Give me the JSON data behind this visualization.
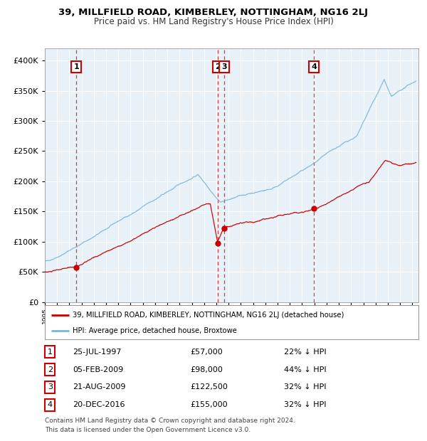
{
  "title": "39, MILLFIELD ROAD, KIMBERLEY, NOTTINGHAM, NG16 2LJ",
  "subtitle": "Price paid vs. HM Land Registry's House Price Index (HPI)",
  "plot_bg_color": "#ffffff",
  "grid_color": "#cccccc",
  "hpi_color": "#7ab3d4",
  "price_color": "#cc0000",
  "ylim": [
    0,
    420000
  ],
  "yticks": [
    0,
    50000,
    100000,
    150000,
    200000,
    250000,
    300000,
    350000,
    400000
  ],
  "legend_label_red": "39, MILLFIELD ROAD, KIMBERLEY, NOTTINGHAM, NG16 2LJ (detached house)",
  "legend_label_blue": "HPI: Average price, detached house, Broxtowe",
  "footer1": "Contains HM Land Registry data © Crown copyright and database right 2024.",
  "footer2": "This data is licensed under the Open Government Licence v3.0.",
  "transactions": [
    {
      "num": 1,
      "date": "25-JUL-1997",
      "price": "£57,000",
      "pct": "22% ↓ HPI",
      "year": 1997.56,
      "price_val": 57000
    },
    {
      "num": 2,
      "date": "05-FEB-2009",
      "price": "£98,000",
      "pct": "44% ↓ HPI",
      "year": 2009.09,
      "price_val": 98000
    },
    {
      "num": 3,
      "date": "21-AUG-2009",
      "price": "£122,500",
      "pct": "32% ↓ HPI",
      "year": 2009.64,
      "price_val": 122500
    },
    {
      "num": 4,
      "date": "20-DEC-2016",
      "price": "£155,000",
      "pct": "32% ↓ HPI",
      "year": 2016.97,
      "price_val": 155000
    }
  ],
  "xmin": 1995.0,
  "xmax": 2025.5
}
